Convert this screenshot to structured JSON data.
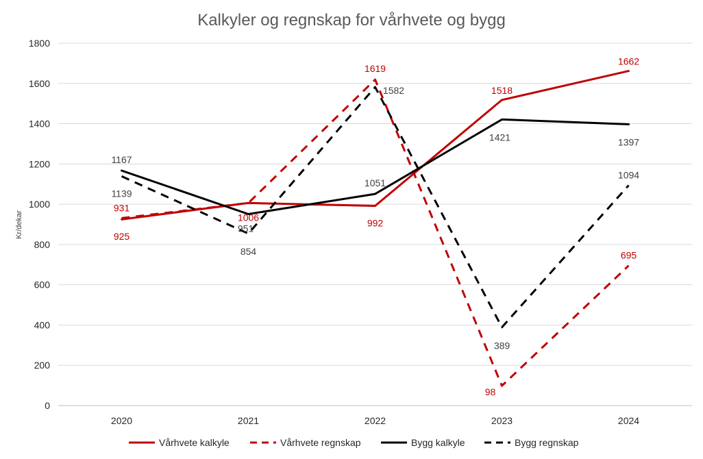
{
  "chart_data": {
    "type": "line",
    "title": "Kalkyler og regnskap for vårhvete og bygg",
    "xlabel": "",
    "ylabel": "Kr/dekar",
    "categories": [
      "2020",
      "2021",
      "2022",
      "2023",
      "2024"
    ],
    "ylim": [
      0,
      1800
    ],
    "yticks": [
      "0",
      "200",
      "400",
      "600",
      "800",
      "1000",
      "1200",
      "1400",
      "1600",
      "1800"
    ],
    "grid": true,
    "legend_position": "bottom",
    "series": [
      {
        "name": "Vårhvete kalkyle",
        "color": "#C00000",
        "dashed": false,
        "values": [
          925,
          1006,
          992,
          1518,
          1662
        ],
        "labels": [
          "925",
          "1006",
          "992",
          "1518",
          "1662"
        ]
      },
      {
        "name": "Vårhvete regnskap",
        "color": "#C00000",
        "dashed": true,
        "values": [
          931,
          1006,
          1619,
          98,
          695
        ],
        "labels": [
          "931",
          "",
          "1619",
          "98",
          "695"
        ]
      },
      {
        "name": "Bygg kalkyle",
        "color": "#000000",
        "dashed": false,
        "values": [
          1167,
          951,
          1051,
          1421,
          1397
        ],
        "labels": [
          "1167",
          "951",
          "1051",
          "1421",
          "1397"
        ]
      },
      {
        "name": "Bygg regnskap",
        "color": "#000000",
        "dashed": true,
        "values": [
          1139,
          854,
          1582,
          389,
          1094
        ],
        "labels": [
          "1139",
          "854",
          "1582",
          "389",
          "1094"
        ]
      }
    ]
  }
}
